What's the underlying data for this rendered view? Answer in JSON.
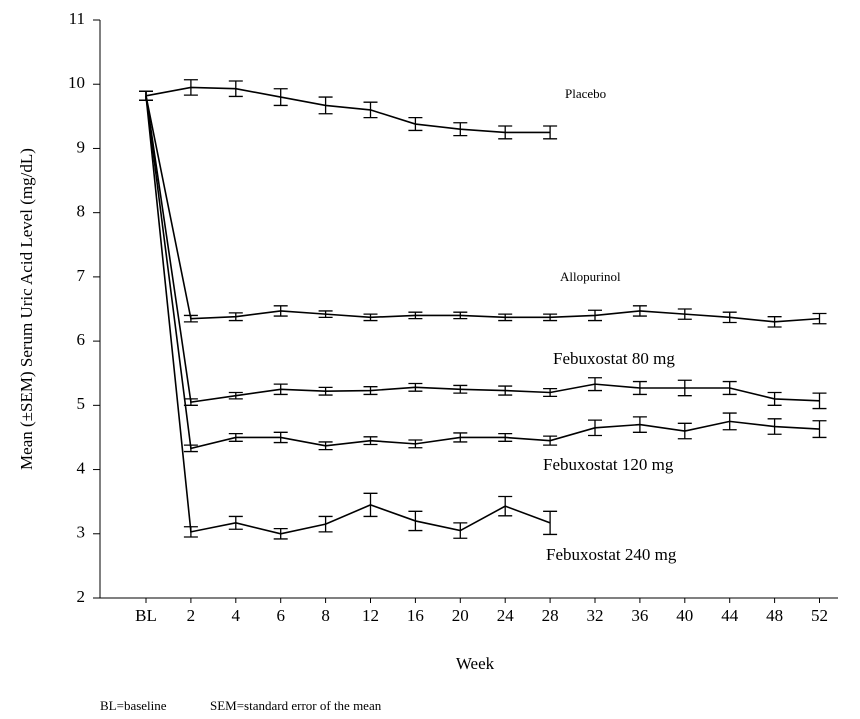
{
  "chart_data": {
    "type": "line",
    "y_label": "Mean (±SEM) Serum Uric Acid Level (mg/dL)",
    "x_label": "Week",
    "footnotes": [
      "BL=baseline",
      "SEM=standard error of the mean"
    ],
    "categories": [
      "BL",
      "2",
      "4",
      "6",
      "8",
      "12",
      "16",
      "20",
      "24",
      "28",
      "32",
      "36",
      "40",
      "44",
      "48",
      "52"
    ],
    "ylim": [
      2,
      11
    ],
    "yticks": [
      2,
      3,
      4,
      5,
      6,
      7,
      8,
      9,
      10,
      11
    ],
    "series": [
      {
        "name": "Placebo",
        "color": "#000000",
        "values": [
          9.82,
          9.95,
          9.93,
          9.8,
          9.67,
          9.6,
          9.38,
          9.3,
          9.25,
          9.25,
          null,
          null,
          null,
          null,
          null,
          null
        ],
        "errors": [
          0.07,
          0.12,
          0.12,
          0.13,
          0.13,
          0.12,
          0.1,
          0.1,
          0.1,
          0.1,
          null,
          null,
          null,
          null,
          null,
          null
        ]
      },
      {
        "name": "Allopurinol",
        "color": "#000000",
        "values": [
          9.82,
          6.35,
          6.38,
          6.47,
          6.42,
          6.37,
          6.4,
          6.4,
          6.37,
          6.37,
          6.4,
          6.47,
          6.42,
          6.37,
          6.3,
          6.35
        ],
        "errors": [
          0.07,
          0.05,
          0.06,
          0.08,
          0.05,
          0.05,
          0.05,
          0.05,
          0.05,
          0.05,
          0.08,
          0.08,
          0.08,
          0.08,
          0.08,
          0.08
        ]
      },
      {
        "name": "Febuxostat 80 mg",
        "color": "#000000",
        "values": [
          9.82,
          5.05,
          5.15,
          5.25,
          5.22,
          5.23,
          5.28,
          5.25,
          5.23,
          5.2,
          5.33,
          5.27,
          5.27,
          5.27,
          5.1,
          5.07
        ],
        "errors": [
          0.07,
          0.05,
          0.05,
          0.08,
          0.06,
          0.06,
          0.06,
          0.06,
          0.07,
          0.06,
          0.1,
          0.1,
          0.12,
          0.1,
          0.1,
          0.12
        ]
      },
      {
        "name": "Febuxostat 120 mg",
        "color": "#000000",
        "values": [
          9.82,
          4.33,
          4.5,
          4.5,
          4.37,
          4.45,
          4.4,
          4.5,
          4.5,
          4.45,
          4.65,
          4.7,
          4.6,
          4.75,
          4.67,
          4.63
        ],
        "errors": [
          0.07,
          0.05,
          0.06,
          0.08,
          0.06,
          0.06,
          0.06,
          0.07,
          0.06,
          0.07,
          0.12,
          0.12,
          0.12,
          0.13,
          0.12,
          0.13
        ]
      },
      {
        "name": "Febuxostat 240 mg",
        "color": "#000000",
        "values": [
          9.82,
          3.03,
          3.17,
          3.0,
          3.15,
          3.45,
          3.2,
          3.05,
          3.43,
          3.17,
          null,
          null,
          null,
          null,
          null,
          null
        ],
        "errors": [
          0.07,
          0.08,
          0.1,
          0.08,
          0.12,
          0.18,
          0.15,
          0.12,
          0.15,
          0.18,
          null,
          null,
          null,
          null,
          null,
          null
        ]
      }
    ]
  }
}
